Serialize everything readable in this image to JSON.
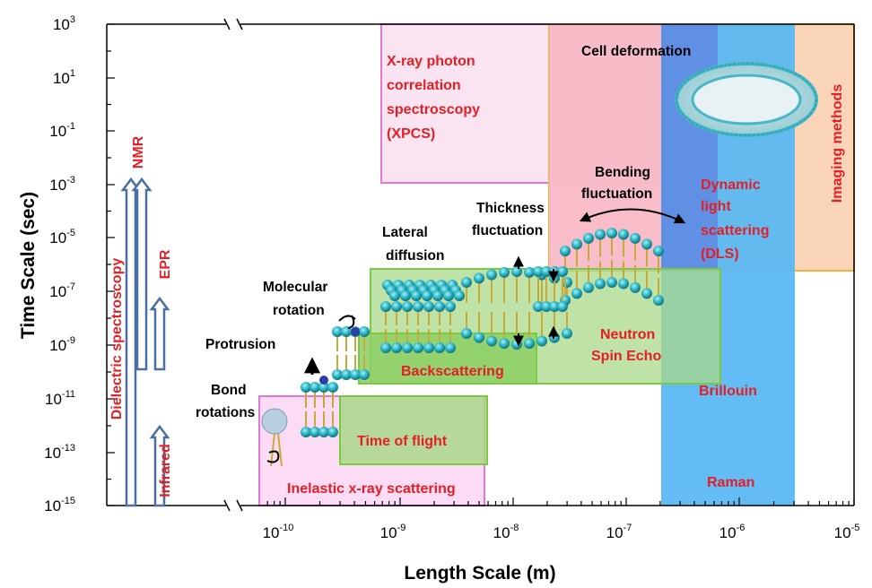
{
  "axes": {
    "x_title": "Length Scale (m)",
    "y_title": "Time Scale (sec)",
    "x_ticks": [
      {
        "base": "10",
        "exp": "-10"
      },
      {
        "base": "10",
        "exp": "-9"
      },
      {
        "base": "10",
        "exp": "-8"
      },
      {
        "base": "10",
        "exp": "-7"
      },
      {
        "base": "10",
        "exp": "-6"
      },
      {
        "base": "10",
        "exp": "-5"
      }
    ],
    "y_ticks": [
      {
        "base": "10",
        "exp": "3"
      },
      {
        "base": "10",
        "exp": "1"
      },
      {
        "base": "10",
        "exp": "-1"
      },
      {
        "base": "10",
        "exp": "-3"
      },
      {
        "base": "10",
        "exp": "-5"
      },
      {
        "base": "10",
        "exp": "-7"
      },
      {
        "base": "10",
        "exp": "-9"
      },
      {
        "base": "10",
        "exp": "-11"
      },
      {
        "base": "10",
        "exp": "-13"
      },
      {
        "base": "10",
        "exp": "-15"
      }
    ]
  },
  "techniques": {
    "xpcs": [
      "X-ray photon",
      "correlation",
      "spectroscopy",
      "(XPCS)"
    ],
    "imaging": "Imaging methods",
    "dls": [
      "Dynamic",
      "light",
      "scattering",
      "(DLS)"
    ],
    "brillouin": "Brillouin",
    "raman": "Raman",
    "nse": [
      "Neutron",
      "Spin Echo"
    ],
    "backscattering": "Backscattering",
    "tof": "Time of flight",
    "ixs": "Inelastic x-ray scattering",
    "dielectric": "Dielectric spectroscopy",
    "nmr": "NMR",
    "epr": "EPR",
    "infrared": "Infrared"
  },
  "motions": {
    "cell_deformation": "Cell deformation",
    "bending": [
      "Bending",
      "fluctuation"
    ],
    "thickness": [
      "Thickness",
      "fluctuation"
    ],
    "lateral": [
      "Lateral",
      "diffusion"
    ],
    "molecular": [
      "Molecular",
      "rotation"
    ],
    "protrusion": "Protrusion",
    "bond": [
      "Bond",
      "rotations"
    ]
  },
  "colors": {
    "xpcs_fill": "#fbe4f1",
    "xpcs_stroke": "#e875d2",
    "imaging_fill": "#f9cfae",
    "imaging_stroke": "#f2b13d",
    "dls_fill": "#f7b9cb",
    "blue_fill": "#5bb8f2",
    "green_fill": "#a9d88a",
    "green_stroke": "#7ac943",
    "red_text": "#e41e25",
    "arrow": "#4a6fa1"
  }
}
